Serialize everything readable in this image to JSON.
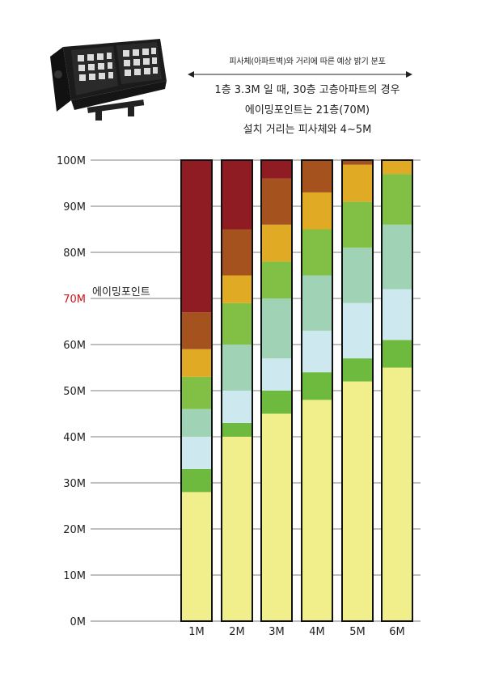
{
  "header": {
    "subtitle": "피사체(아파트벽)와 거리에 따른 예상 밝기 분포",
    "lines": [
      "1층 3.3M 일 때, 30층 고층아파트의 경우",
      "에이밍포인트는 21층(70M)",
      "설치 거리는 피사체와 4~5M"
    ]
  },
  "colors": {
    "aim_highlight": "#d0121b",
    "levels": [
      "#f0ef8c",
      "#6dba3e",
      "#cde8ee",
      "#a0d3b5",
      "#82c045",
      "#e1aa24",
      "#a5521f",
      "#8e1c22"
    ]
  },
  "chart_data": {
    "type": "heatmap",
    "y_unit": "M",
    "ylim": [
      0,
      100
    ],
    "yticks": [
      "0M",
      "10M",
      "20M",
      "30M",
      "40M",
      "50M",
      "60M",
      "70M",
      "80M",
      "90M",
      "100M"
    ],
    "categories": [
      "1M",
      "2M",
      "3M",
      "4M",
      "5M",
      "6M"
    ],
    "aiming_point": {
      "label": "에이밍포인트",
      "height_label": "70M",
      "height": 70
    },
    "columns": [
      {
        "name": "1M",
        "bands": [
          {
            "level": 1,
            "top": 28
          },
          {
            "level": 2,
            "top": 33
          },
          {
            "level": 3,
            "top": 40
          },
          {
            "level": 4,
            "top": 46
          },
          {
            "level": 5,
            "top": 53
          },
          {
            "level": 6,
            "top": 59
          },
          {
            "level": 7,
            "top": 67
          },
          {
            "level": 8,
            "top": 100
          }
        ]
      },
      {
        "name": "2M",
        "bands": [
          {
            "level": 1,
            "top": 40
          },
          {
            "level": 2,
            "top": 43
          },
          {
            "level": 3,
            "top": 50
          },
          {
            "level": 4,
            "top": 60
          },
          {
            "level": 5,
            "top": 69
          },
          {
            "level": 6,
            "top": 75
          },
          {
            "level": 7,
            "top": 85
          },
          {
            "level": 8,
            "top": 100
          }
        ]
      },
      {
        "name": "3M",
        "bands": [
          {
            "level": 1,
            "top": 45
          },
          {
            "level": 2,
            "top": 50
          },
          {
            "level": 3,
            "top": 57
          },
          {
            "level": 4,
            "top": 70
          },
          {
            "level": 5,
            "top": 78
          },
          {
            "level": 6,
            "top": 86
          },
          {
            "level": 7,
            "top": 96
          },
          {
            "level": 8,
            "top": 100
          }
        ]
      },
      {
        "name": "4M",
        "bands": [
          {
            "level": 1,
            "top": 48
          },
          {
            "level": 2,
            "top": 54
          },
          {
            "level": 3,
            "top": 63
          },
          {
            "level": 4,
            "top": 75
          },
          {
            "level": 5,
            "top": 85
          },
          {
            "level": 6,
            "top": 93
          },
          {
            "level": 7,
            "top": 100
          }
        ]
      },
      {
        "name": "5M",
        "bands": [
          {
            "level": 1,
            "top": 52
          },
          {
            "level": 2,
            "top": 57
          },
          {
            "level": 3,
            "top": 69
          },
          {
            "level": 4,
            "top": 81
          },
          {
            "level": 5,
            "top": 91
          },
          {
            "level": 6,
            "top": 99
          },
          {
            "level": 7,
            "top": 100
          }
        ]
      },
      {
        "name": "6M",
        "bands": [
          {
            "level": 1,
            "top": 55
          },
          {
            "level": 2,
            "top": 61
          },
          {
            "level": 3,
            "top": 72
          },
          {
            "level": 4,
            "top": 86
          },
          {
            "level": 5,
            "top": 97
          },
          {
            "level": 6,
            "top": 100
          }
        ]
      }
    ]
  }
}
